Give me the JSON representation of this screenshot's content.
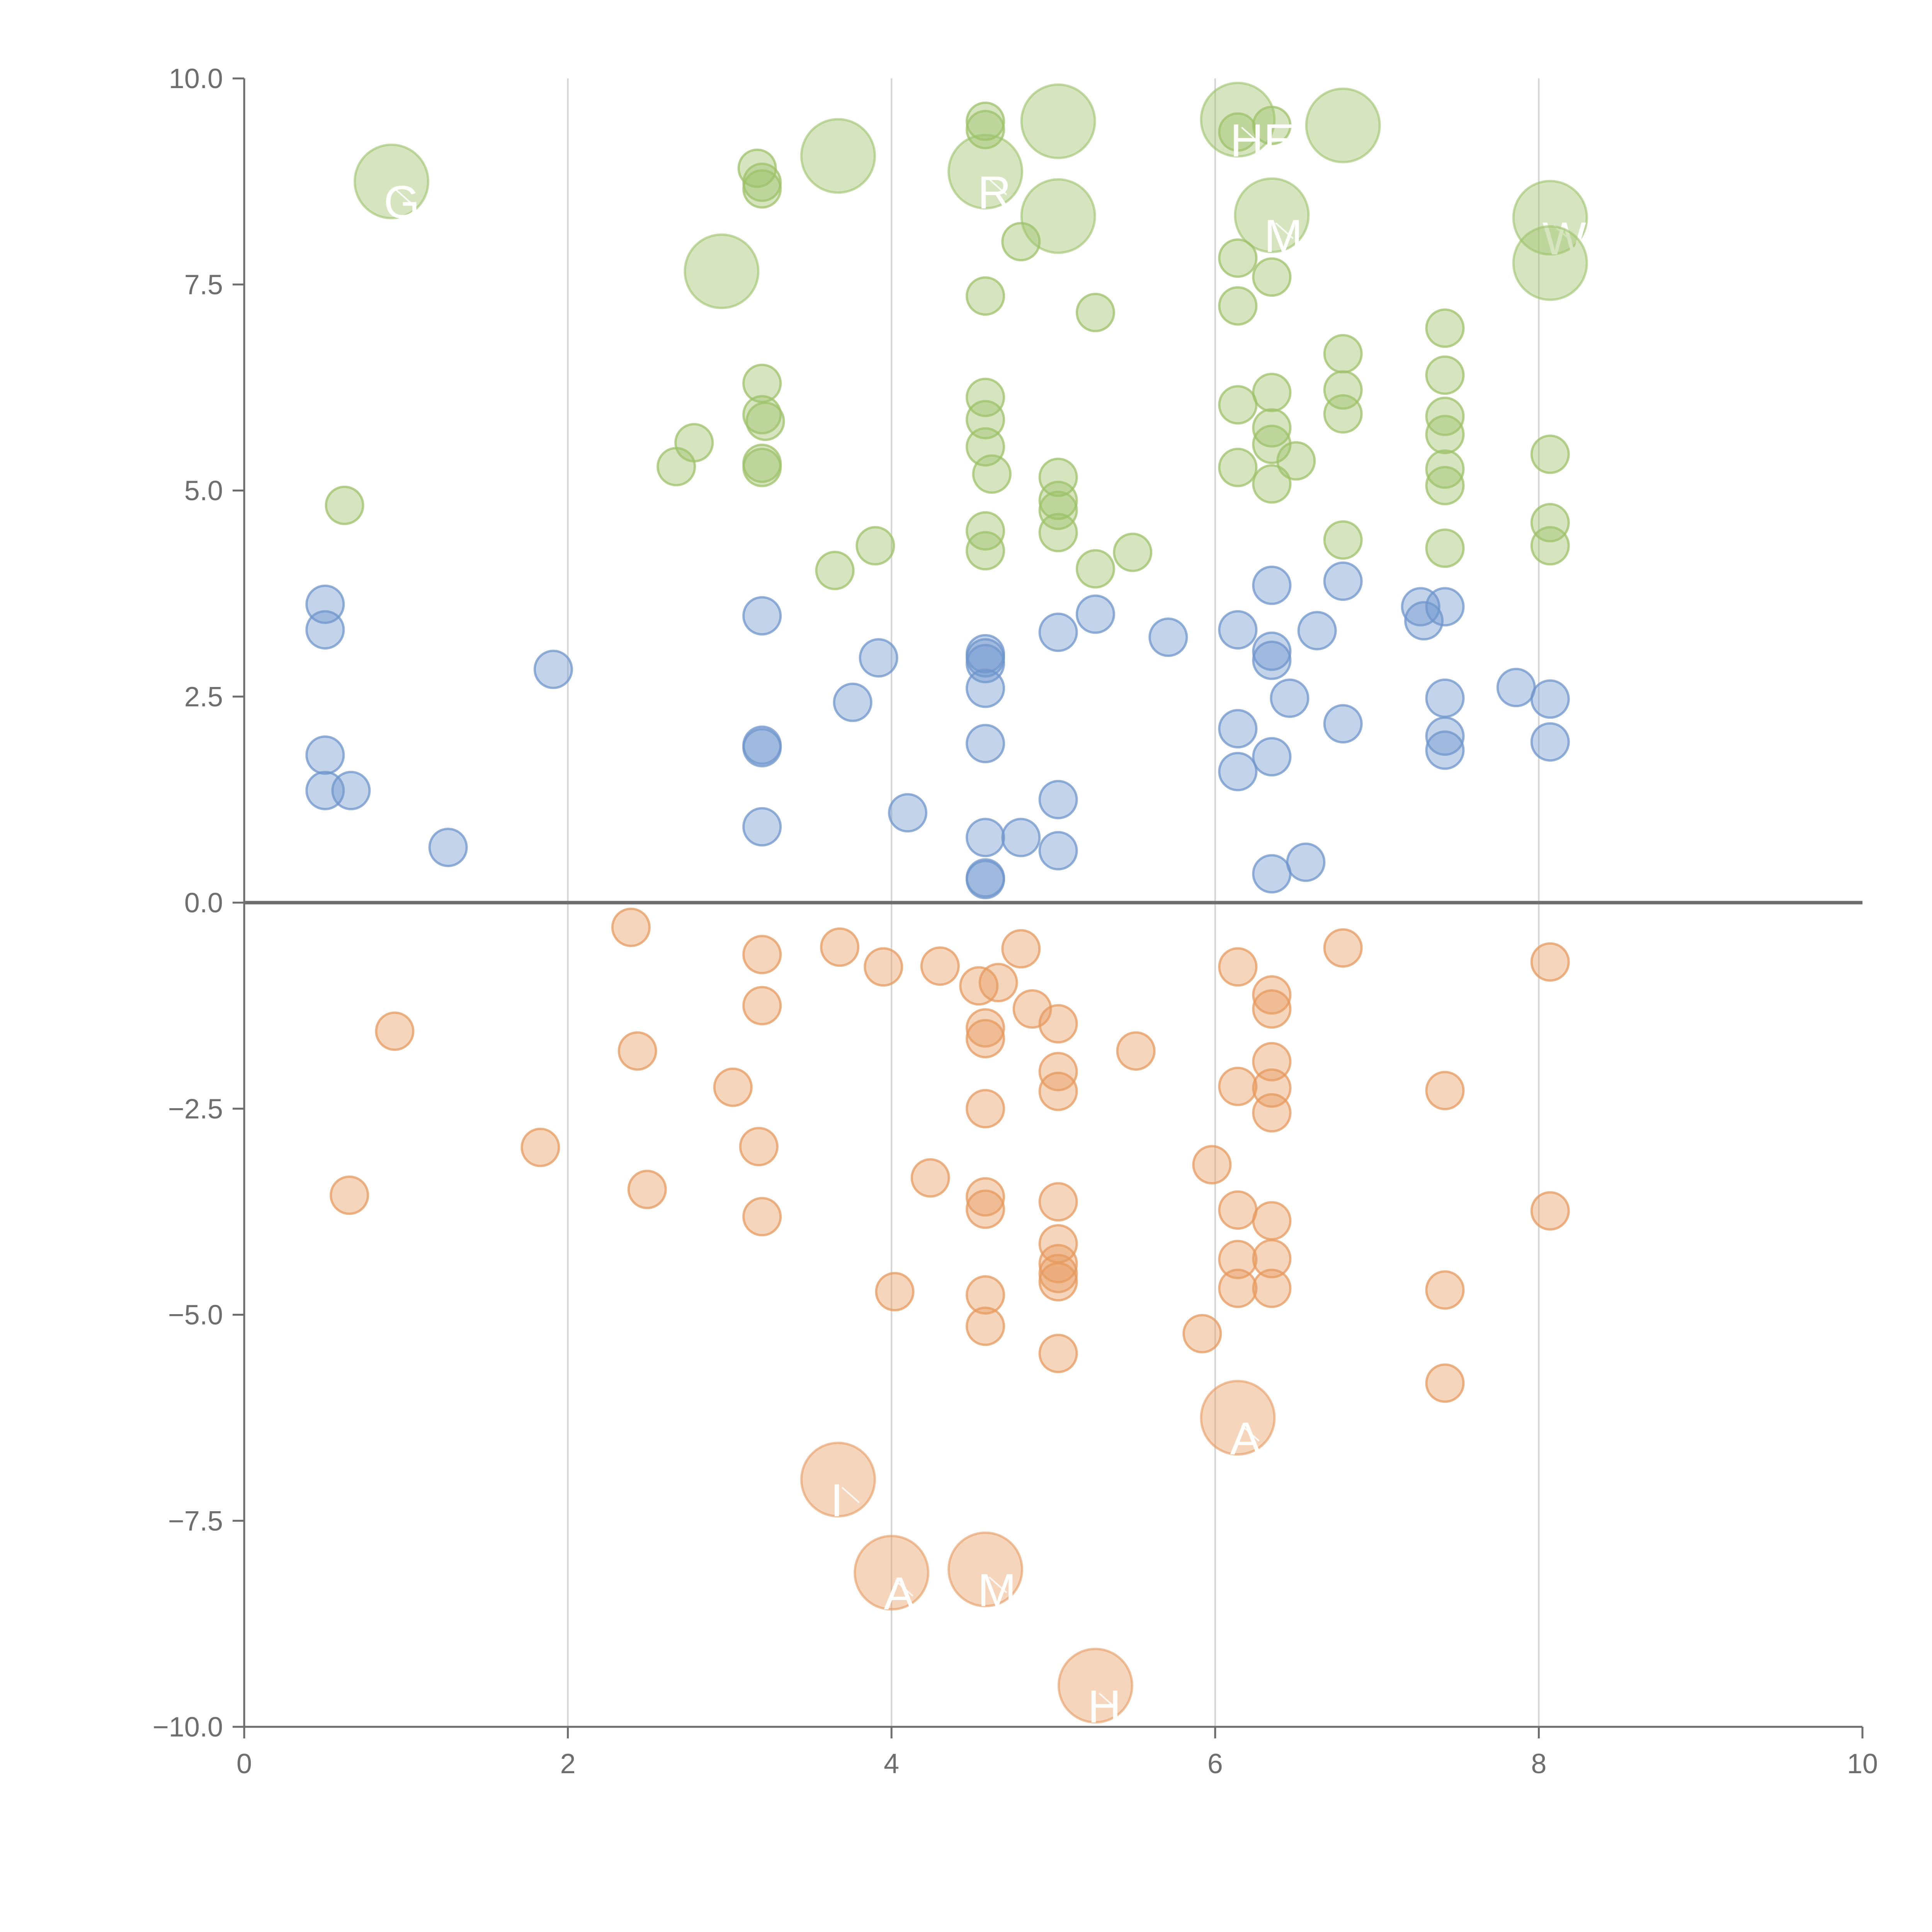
{
  "chart_data": {
    "type": "scatter",
    "title": "",
    "xlabel": "",
    "ylabel": "",
    "xlim": [
      0,
      10
    ],
    "ylim": [
      -10,
      10
    ],
    "xticks": [
      "0",
      "2",
      "4",
      "6",
      "8",
      "10"
    ],
    "yticks": [
      "−10.0",
      "−7.5",
      "−5.0",
      "−2.5",
      "0.0",
      "2.5",
      "5.0",
      "7.5",
      "10.0"
    ],
    "vertical_gridlines_at": [
      2,
      4,
      6,
      8
    ],
    "zero_line_at": 0,
    "colors": {
      "green": "#9dc26a",
      "blue": "#6f95cc",
      "orange": "#e69a5f"
    },
    "series": [
      {
        "name": "green",
        "points": [
          [
            0.62,
            4.82
          ],
          [
            2.67,
            5.29
          ],
          [
            2.78,
            5.58
          ],
          [
            3.17,
            8.91
          ],
          [
            3.2,
            8.74
          ],
          [
            3.2,
            8.66
          ],
          [
            3.2,
            6.3
          ],
          [
            3.2,
            5.92
          ],
          [
            3.2,
            5.28
          ],
          [
            3.2,
            5.33
          ],
          [
            3.22,
            5.84
          ],
          [
            3.65,
            4.03
          ],
          [
            3.9,
            4.33
          ],
          [
            4.58,
            9.48
          ],
          [
            4.58,
            9.38
          ],
          [
            4.58,
            7.36
          ],
          [
            4.58,
            6.13
          ],
          [
            4.58,
            5.86
          ],
          [
            4.58,
            5.53
          ],
          [
            4.58,
            4.51
          ],
          [
            4.58,
            4.27
          ],
          [
            4.62,
            5.2
          ],
          [
            4.8,
            8.02
          ],
          [
            5.03,
            5.16
          ],
          [
            5.03,
            4.88
          ],
          [
            5.03,
            4.76
          ],
          [
            5.03,
            4.49
          ],
          [
            5.26,
            7.16
          ],
          [
            5.26,
            4.05
          ],
          [
            5.49,
            4.25
          ],
          [
            6.14,
            7.82
          ],
          [
            6.14,
            7.24
          ],
          [
            6.14,
            6.04
          ],
          [
            6.14,
            5.28
          ],
          [
            6.14,
            9.35
          ],
          [
            6.35,
            9.43
          ],
          [
            6.35,
            7.59
          ],
          [
            6.35,
            6.19
          ],
          [
            6.35,
            5.76
          ],
          [
            6.35,
            5.56
          ],
          [
            6.35,
            5.08
          ],
          [
            6.5,
            5.36
          ],
          [
            6.79,
            6.66
          ],
          [
            6.79,
            6.22
          ],
          [
            6.79,
            5.93
          ],
          [
            6.79,
            4.4
          ],
          [
            7.42,
            6.97
          ],
          [
            7.42,
            6.4
          ],
          [
            7.42,
            5.9
          ],
          [
            7.42,
            5.68
          ],
          [
            7.42,
            5.26
          ],
          [
            7.42,
            5.06
          ],
          [
            7.42,
            4.3
          ],
          [
            8.07,
            5.44
          ],
          [
            8.07,
            4.61
          ],
          [
            8.07,
            4.33
          ]
        ]
      },
      {
        "name": "blue",
        "points": [
          [
            0.5,
            3.62
          ],
          [
            0.5,
            3.31
          ],
          [
            0.5,
            1.79
          ],
          [
            0.5,
            1.36
          ],
          [
            0.66,
            1.36
          ],
          [
            1.26,
            0.67
          ],
          [
            1.91,
            2.83
          ],
          [
            3.2,
            3.48
          ],
          [
            3.2,
            1.91
          ],
          [
            3.2,
            1.88
          ],
          [
            3.2,
            0.92
          ],
          [
            3.76,
            2.43
          ],
          [
            3.92,
            2.97
          ],
          [
            4.1,
            1.09
          ],
          [
            4.58,
            3.02
          ],
          [
            4.58,
            2.97
          ],
          [
            4.58,
            2.9
          ],
          [
            4.58,
            2.6
          ],
          [
            4.58,
            1.93
          ],
          [
            4.58,
            0.79
          ],
          [
            4.58,
            0.3
          ],
          [
            4.58,
            0.28
          ],
          [
            4.8,
            0.79
          ],
          [
            5.03,
            3.28
          ],
          [
            5.03,
            1.25
          ],
          [
            5.03,
            0.63
          ],
          [
            5.26,
            3.5
          ],
          [
            5.71,
            3.22
          ],
          [
            6.14,
            3.31
          ],
          [
            6.14,
            2.11
          ],
          [
            6.14,
            1.59
          ],
          [
            6.35,
            3.85
          ],
          [
            6.35,
            3.05
          ],
          [
            6.35,
            2.94
          ],
          [
            6.35,
            1.77
          ],
          [
            6.35,
            0.35
          ],
          [
            6.46,
            2.48
          ],
          [
            6.56,
            0.49
          ],
          [
            6.63,
            3.3
          ],
          [
            6.79,
            3.9
          ],
          [
            6.79,
            2.17
          ],
          [
            7.27,
            3.59
          ],
          [
            7.29,
            3.42
          ],
          [
            7.42,
            3.59
          ],
          [
            7.42,
            2.48
          ],
          [
            7.42,
            2.02
          ],
          [
            7.42,
            1.85
          ],
          [
            7.86,
            2.61
          ],
          [
            8.07,
            2.47
          ],
          [
            8.07,
            1.95
          ]
        ]
      },
      {
        "name": "orange",
        "points": [
          [
            0.65,
            -3.55
          ],
          [
            0.93,
            -1.56
          ],
          [
            1.83,
            -2.97
          ],
          [
            2.39,
            -0.3
          ],
          [
            2.43,
            -1.8
          ],
          [
            2.49,
            -3.48
          ],
          [
            3.02,
            -2.24
          ],
          [
            3.18,
            -2.96
          ],
          [
            3.2,
            -0.63
          ],
          [
            3.2,
            -1.25
          ],
          [
            3.2,
            -3.81
          ],
          [
            3.68,
            -0.54
          ],
          [
            3.95,
            -0.78
          ],
          [
            4.02,
            -4.72
          ],
          [
            4.24,
            -3.34
          ],
          [
            4.3,
            -0.77
          ],
          [
            4.54,
            -1.01
          ],
          [
            4.58,
            -1.52
          ],
          [
            4.58,
            -1.65
          ],
          [
            4.58,
            -2.5
          ],
          [
            4.58,
            -3.57
          ],
          [
            4.58,
            -3.72
          ],
          [
            4.58,
            -4.76
          ],
          [
            4.58,
            -5.14
          ],
          [
            4.66,
            -0.97
          ],
          [
            4.8,
            -0.56
          ],
          [
            4.87,
            -1.29
          ],
          [
            5.03,
            -1.47
          ],
          [
            5.03,
            -2.05
          ],
          [
            5.03,
            -2.29
          ],
          [
            5.03,
            -3.63
          ],
          [
            5.03,
            -4.14
          ],
          [
            5.03,
            -4.38
          ],
          [
            5.03,
            -4.5
          ],
          [
            5.03,
            -4.6
          ],
          [
            5.03,
            -5.47
          ],
          [
            5.51,
            -1.8
          ],
          [
            5.92,
            -5.23
          ],
          [
            5.98,
            -3.18
          ],
          [
            6.14,
            -0.78
          ],
          [
            6.14,
            -2.23
          ],
          [
            6.14,
            -3.73
          ],
          [
            6.14,
            -4.33
          ],
          [
            6.14,
            -4.68
          ],
          [
            6.35,
            -1.12
          ],
          [
            6.35,
            -1.29
          ],
          [
            6.35,
            -1.93
          ],
          [
            6.35,
            -2.25
          ],
          [
            6.35,
            -2.55
          ],
          [
            6.35,
            -3.86
          ],
          [
            6.35,
            -4.32
          ],
          [
            6.35,
            -4.68
          ],
          [
            6.79,
            -0.55
          ],
          [
            7.42,
            -2.28
          ],
          [
            7.42,
            -4.7
          ],
          [
            7.42,
            -5.83
          ],
          [
            8.07,
            -0.72
          ],
          [
            8.07,
            -3.74
          ]
        ]
      }
    ],
    "large_bubbles": [
      {
        "series": "green",
        "x": 0.91,
        "y": 8.75,
        "label": "G"
      },
      {
        "series": "green",
        "x": 2.95,
        "y": 7.66,
        "label": ""
      },
      {
        "series": "green",
        "x": 3.67,
        "y": 9.06,
        "label": ""
      },
      {
        "series": "green",
        "x": 4.58,
        "y": 8.87,
        "label": "R"
      },
      {
        "series": "green",
        "x": 5.03,
        "y": 9.48,
        "label": ""
      },
      {
        "series": "green",
        "x": 5.03,
        "y": 8.33,
        "label": ""
      },
      {
        "series": "green",
        "x": 6.14,
        "y": 9.5,
        "label": "HERI"
      },
      {
        "series": "green",
        "x": 6.35,
        "y": 8.34,
        "label": "M"
      },
      {
        "series": "green",
        "x": 6.79,
        "y": 9.43,
        "label": ""
      },
      {
        "series": "green",
        "x": 8.07,
        "y": 8.31,
        "label": "WOO"
      },
      {
        "series": "green",
        "x": 8.07,
        "y": 7.76,
        "label": ""
      },
      {
        "series": "orange",
        "x": 3.67,
        "y": -7.0,
        "label": "I"
      },
      {
        "series": "orange",
        "x": 4.0,
        "y": -8.13,
        "label": "A"
      },
      {
        "series": "orange",
        "x": 4.58,
        "y": -8.09,
        "label": "M"
      },
      {
        "series": "orange",
        "x": 5.26,
        "y": -9.5,
        "label": "H"
      },
      {
        "series": "orange",
        "x": 6.14,
        "y": -6.25,
        "label": "A"
      }
    ]
  }
}
